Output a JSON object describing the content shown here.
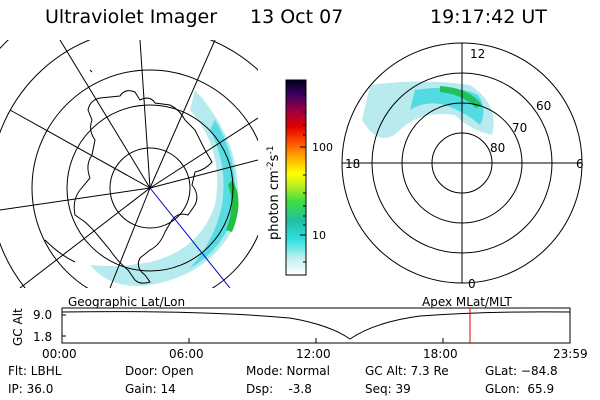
{
  "header": {
    "title": "Ultraviolet Imager",
    "date": "13 Oct 07",
    "time": "19:17:42 UT"
  },
  "colorbar": {
    "label_main": "photon cm",
    "label_exp1": "-2",
    "label_mid": "s",
    "label_exp2": "-1",
    "ticks": [
      "100",
      "10"
    ]
  },
  "geographic_panel": {
    "caption": "Geographic Lat/Lon"
  },
  "apex_panel": {
    "caption": "Apex MLat/MLT",
    "mlt_labels": [
      "12",
      "18",
      "6",
      "0"
    ],
    "lat_labels": [
      "60",
      "70",
      "80"
    ]
  },
  "altitude_plot": {
    "ylabel": "GC Alt",
    "ytick_top": "9.0",
    "ytick_bottom": "1.8",
    "time_ticks": [
      "00:00",
      "06:00",
      "12:00",
      "18:00",
      "23:59"
    ],
    "marker_time": "19:17:42"
  },
  "status": {
    "flt": "Flt: LBHL",
    "ip": "IP: 36.0",
    "door": "Door: Open",
    "gain": "Gain: 14",
    "mode": "Mode: Normal",
    "dsp": "Dsp:    -3.8",
    "gcalt": "GC Alt: 7.3 Re",
    "seq": "Seq: 39",
    "glat": "GLat: −84.8",
    "glon": "GLon:  65.9"
  },
  "colors": {
    "marker": "#e00000",
    "meridian": "#0000cc"
  }
}
